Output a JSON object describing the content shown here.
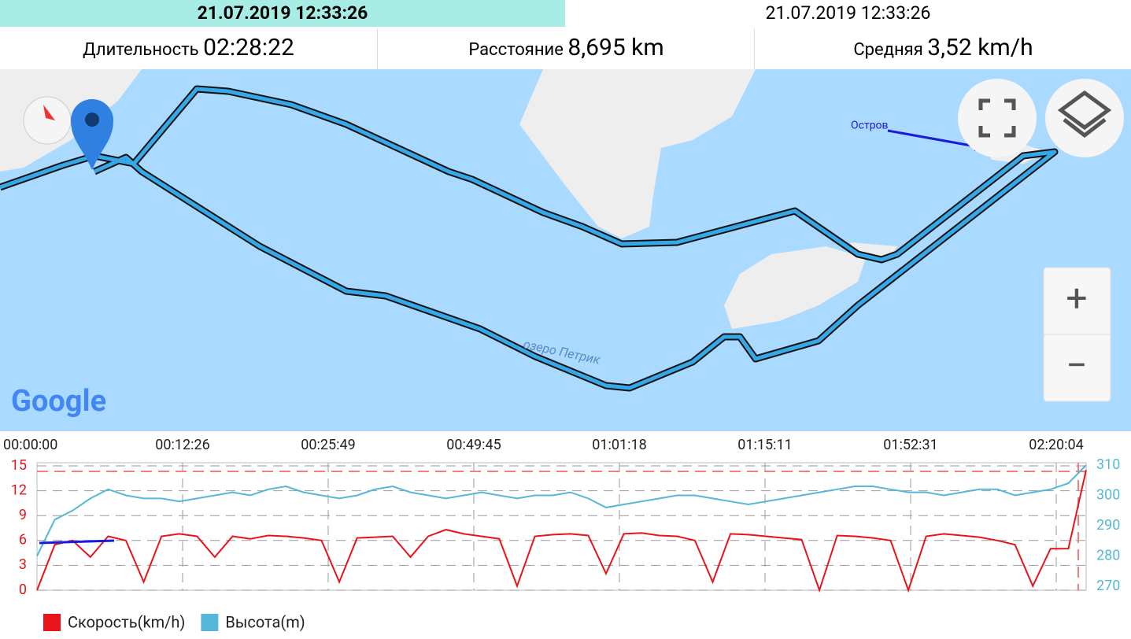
{
  "header": {
    "start_time": "21.07.2019 12:33:26",
    "end_time": "21.07.2019 12:33:26",
    "duration_label": "Длительность",
    "duration": "02:28:22",
    "distance_label": "Расстояние",
    "distance": "8,695 km",
    "average_label": "Средняя",
    "average": "3,52 km/h"
  },
  "map": {
    "lake_label": "озеро Петрик",
    "annotation": "Остров",
    "logo": "Google",
    "zoom_in": "+",
    "zoom_out": "−"
  },
  "chart_data": {
    "type": "line",
    "xticks": [
      "00:00:00",
      "00:12:26",
      "00:25:49",
      "00:49:45",
      "01:01:18",
      "01:15:11",
      "01:52:31",
      "02:20:04"
    ],
    "ylim": [
      0,
      15
    ],
    "yticks": [
      0,
      3,
      6,
      9,
      12,
      15
    ],
    "y2lim": [
      270,
      310
    ],
    "y2ticks": [
      270,
      280,
      290,
      300,
      310
    ],
    "grid": true,
    "series": [
      {
        "name": "Скорость(km/h)",
        "color": "#e8141b",
        "values": [
          0,
          5.5,
          6,
          4,
          6.5,
          6,
          1,
          6.5,
          6.8,
          6.5,
          4,
          6.5,
          6.2,
          6.6,
          6.5,
          6.3,
          6,
          1,
          6.3,
          6.4,
          6.5,
          4,
          6.5,
          7.3,
          6.8,
          6.5,
          6.2,
          0.5,
          6.5,
          6.7,
          6.8,
          6.6,
          2,
          6.8,
          6.9,
          6.6,
          6.5,
          6,
          1,
          6.8,
          6.7,
          6.5,
          6.3,
          6.1,
          0,
          6.6,
          6.5,
          6.3,
          6.0,
          0,
          6.5,
          6.8,
          6.6,
          6.4,
          6.0,
          5.5,
          0.5,
          5,
          5,
          14.5
        ]
      },
      {
        "name": "Высота(m)",
        "color": "#56b8d8",
        "axis": "y2",
        "values": [
          280,
          292,
          295,
          299,
          302,
          300,
          299,
          299,
          298,
          299,
          300,
          301,
          300,
          302,
          303,
          301,
          300,
          299,
          300,
          302,
          303,
          301,
          300,
          299,
          300,
          301,
          300,
          299,
          300,
          300,
          301,
          299,
          296,
          297,
          298,
          299,
          300,
          300,
          299,
          298,
          297,
          298,
          299,
          300,
          301,
          302,
          303,
          303,
          302,
          301,
          301,
          300,
          301,
          302,
          302,
          300,
          301,
          302,
          304,
          310
        ]
      }
    ]
  }
}
